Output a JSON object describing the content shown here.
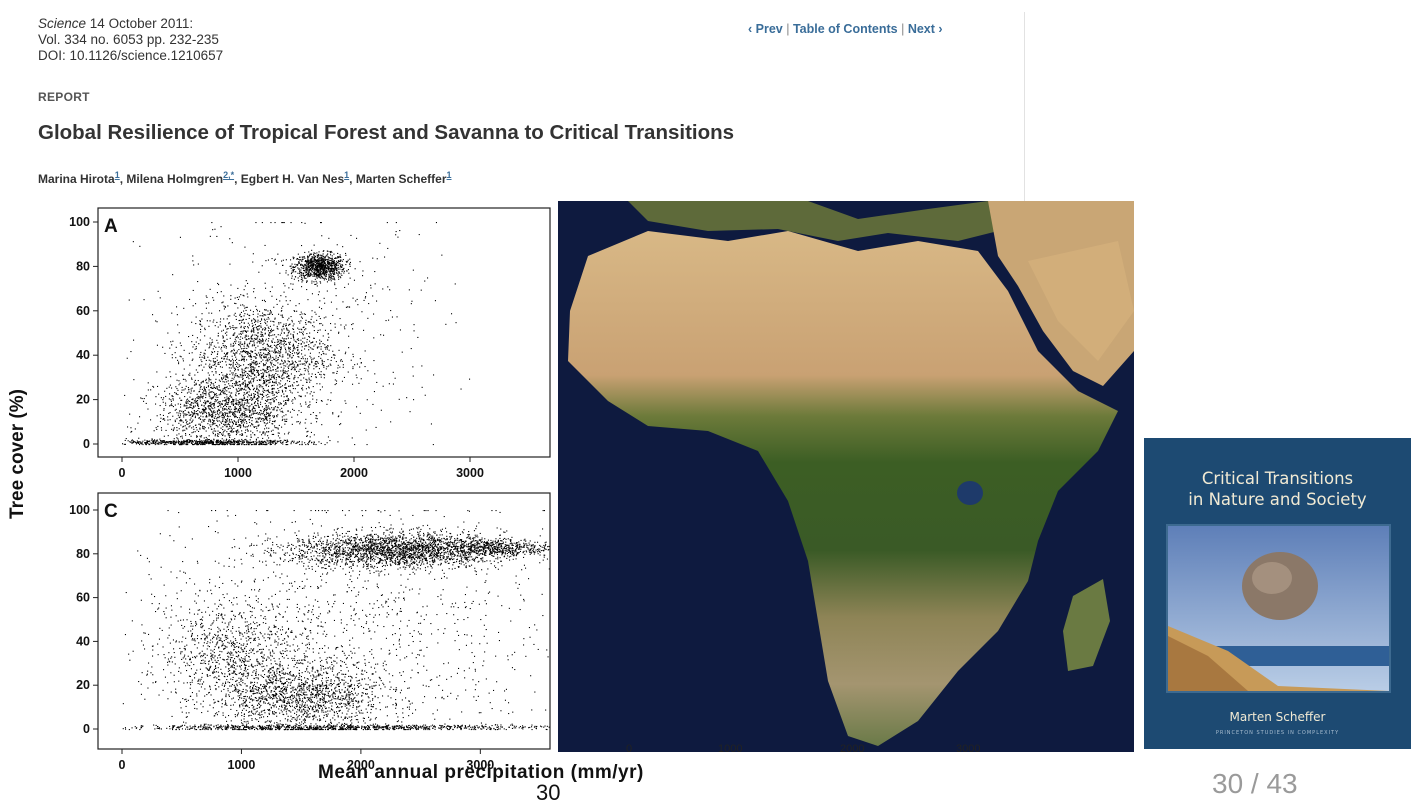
{
  "citation": {
    "journal": "Science",
    "date": "14 October 2011:",
    "volume": "Vol. 334 no. 6053 pp. 232-235",
    "doi": "DOI: 10.1126/science.1210657"
  },
  "nav": {
    "prev": "‹ Prev",
    "toc": "Table of Contents",
    "next": "Next ›",
    "separator": "|"
  },
  "section_label": "REPORT",
  "title": "Global Resilience of Tropical Forest and Savanna to Critical Transitions",
  "authors": [
    {
      "name": "Marina Hirota",
      "aff": "1"
    },
    {
      "name": "Milena Holmgren",
      "aff": "2,*"
    },
    {
      "name": "Egbert H. Van Nes",
      "aff": "1"
    },
    {
      "name": "Marten Scheffer",
      "aff": "1"
    }
  ],
  "figure": {
    "ylabel": "Tree cover (%)",
    "xlabel": "Mean annual precipitation (mm/yr)"
  },
  "chart_data": [
    {
      "type": "scatter",
      "panel": "A",
      "xlim": [
        0,
        3000
      ],
      "ylim": [
        0,
        100
      ],
      "xticks": [
        0,
        1000,
        2000,
        3000
      ],
      "yticks": [
        0,
        20,
        40,
        60,
        80,
        100
      ],
      "clusters": [
        {
          "x_mean": 1700,
          "y_mean": 80,
          "x_sd": 110,
          "y_sd": 3,
          "n": 900
        },
        {
          "x_mean": 1200,
          "y_mean": 40,
          "x_sd": 300,
          "y_sd": 12,
          "n": 1500
        },
        {
          "x_mean": 900,
          "y_mean": 15,
          "x_sd": 300,
          "y_sd": 8,
          "n": 1400
        },
        {
          "x_mean": 700,
          "y_mean": 1,
          "x_sd": 450,
          "y_sd": 0.6,
          "n": 600
        },
        {
          "x_mean": 1500,
          "y_mean": 50,
          "x_sd": 650,
          "y_sd": 25,
          "n": 500
        }
      ]
    },
    {
      "type": "scatter",
      "panel": "C",
      "xlim": [
        0,
        3600
      ],
      "ylim": [
        0,
        100
      ],
      "xticks": [
        0,
        1000,
        2000,
        3000
      ],
      "yticks": [
        0,
        20,
        40,
        60,
        80,
        100
      ],
      "clusters": [
        {
          "x_mean": 2300,
          "y_mean": 82,
          "x_sd": 450,
          "y_sd": 4,
          "n": 2200
        },
        {
          "x_mean": 3100,
          "y_mean": 83,
          "x_sd": 250,
          "y_sd": 2,
          "n": 500
        },
        {
          "x_mean": 1500,
          "y_mean": 15,
          "x_sd": 350,
          "y_sd": 8,
          "n": 1400
        },
        {
          "x_mean": 900,
          "y_mean": 35,
          "x_sd": 300,
          "y_sd": 12,
          "n": 800
        },
        {
          "x_mean": 1800,
          "y_mean": 1,
          "x_sd": 1000,
          "y_sd": 0.6,
          "n": 900
        },
        {
          "x_mean": 1800,
          "y_mean": 45,
          "x_sd": 900,
          "y_sd": 28,
          "n": 1200
        }
      ]
    }
  ],
  "book": {
    "title_line1": "Critical Transitions",
    "title_line2": "in Nature and Society",
    "author": "Marten Scheffer",
    "series": "PRINCETON STUDIES IN COMPLEXITY"
  },
  "page_number": "30",
  "slide_counter": "30 / 43",
  "colors": {
    "link": "#3a6d99",
    "book_bg": "#1d4a72",
    "ocean": "#0e1a3f",
    "desert": "#d9b78a",
    "forest": "#3a5e22"
  }
}
